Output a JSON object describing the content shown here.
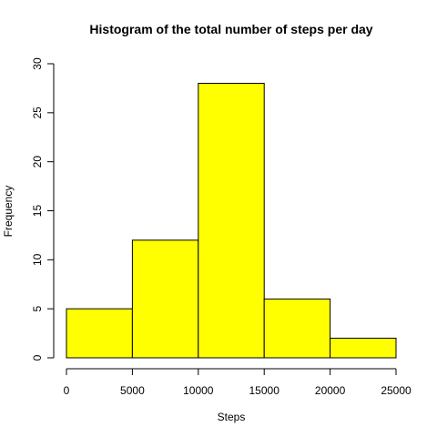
{
  "chart_data": {
    "type": "bar",
    "title": "Histogram of the total number of steps per day",
    "xlabel": "Steps",
    "ylabel": "Frequency",
    "bins": [
      {
        "start": 0,
        "end": 5000,
        "count": 5
      },
      {
        "start": 5000,
        "end": 10000,
        "count": 12
      },
      {
        "start": 10000,
        "end": 15000,
        "count": 28
      },
      {
        "start": 15000,
        "end": 20000,
        "count": 6
      },
      {
        "start": 20000,
        "end": 25000,
        "count": 2
      }
    ],
    "xlim": [
      0,
      25000
    ],
    "ylim": [
      0,
      30
    ],
    "x_ticks": [
      0,
      5000,
      10000,
      15000,
      20000,
      25000
    ],
    "y_ticks": [
      0,
      5,
      10,
      15,
      20,
      25,
      30
    ],
    "bar_color": "#ffff00",
    "border_color": "#000000",
    "grid": false,
    "legend": "none"
  }
}
